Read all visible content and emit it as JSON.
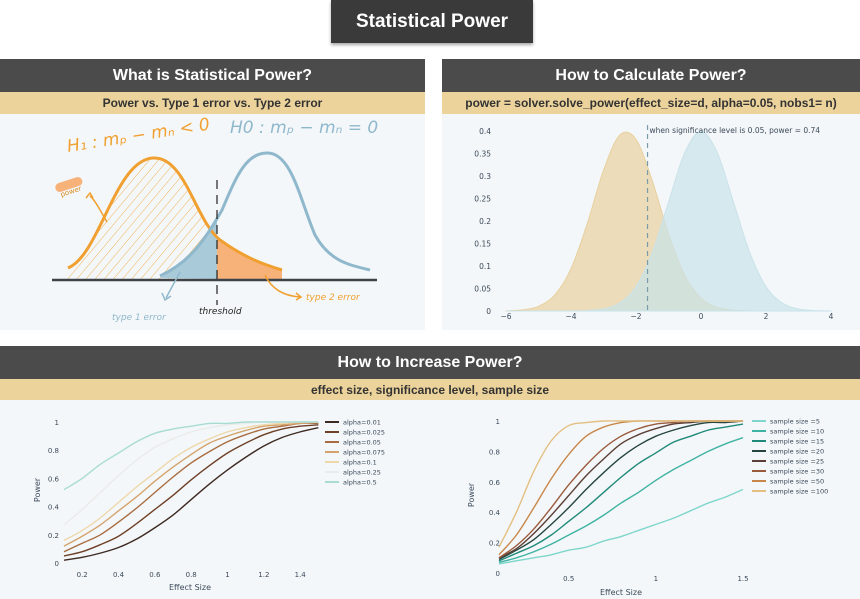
{
  "title": "Statistical Power",
  "panels": {
    "what": {
      "header": "What is Statistical Power?",
      "subheader": "Power vs. Type 1 error vs. Type 2 error",
      "sketch": {
        "h1": "H₁ : mₚ − mₙ < 0",
        "h0": "H0 : mₚ − mₙ = 0",
        "power": "power",
        "type1": "type 1 error",
        "threshold": "threshold",
        "type2": "type 2 error",
        "colors": {
          "h1": "#f0a030",
          "h0": "#8fb8cc",
          "type2_fill": "#f7b27a",
          "type1_fill": "#a9cbd9"
        }
      }
    },
    "calc": {
      "header": "How to Calculate Power?",
      "subheader": "power = solver.solve_power(effect_size=d, alpha=0.05, nobs1= n)"
    },
    "increase": {
      "header": "How to Increase Power?",
      "subheader": "effect size, significance level, sample size"
    }
  },
  "chart_data": [
    {
      "type": "area",
      "annotation": "when significance level is 0.05, power = 0.74",
      "threshold_x": -1.645,
      "xlim": [
        -6.3,
        4
      ],
      "ylim": [
        0,
        0.4
      ],
      "xticks": [
        -6,
        -4,
        -2,
        0,
        2,
        4
      ],
      "yticks": [
        0,
        0.05,
        0.1,
        0.15,
        0.2,
        0.25,
        0.3,
        0.35,
        0.4
      ],
      "grid": false,
      "x": [
        -6,
        -5.5,
        -5,
        -4.5,
        -4,
        -3.5,
        -3,
        -2.5,
        -2,
        -1.5,
        -1,
        -0.5,
        0,
        0.5,
        1,
        1.5,
        2,
        2.5,
        3,
        3.5,
        4
      ],
      "series": [
        {
          "color": "#e8d09e",
          "values": [
            0.0004,
            0.0024,
            0.0104,
            0.0355,
            0.094,
            0.1942,
            0.3123,
            0.391,
            0.3814,
            0.2897,
            0.1714,
            0.079,
            0.0283,
            0.0079,
            0.0017,
            0.0003,
            0,
            0,
            0,
            0,
            0
          ]
        },
        {
          "color": "#c9e3ea",
          "values": [
            0,
            0,
            0,
            0,
            0.0001,
            0.0009,
            0.0044,
            0.018,
            0.054,
            0.13,
            0.242,
            0.352,
            0.399,
            0.352,
            0.242,
            0.13,
            0.054,
            0.018,
            0.0044,
            0.0009,
            0.0001
          ]
        }
      ]
    },
    {
      "type": "line",
      "xlabel": "Effect Size",
      "ylabel": "Power",
      "xlim": [
        0.1,
        1.5
      ],
      "ylim": [
        0,
        1
      ],
      "xticks": [
        0.2,
        0.4,
        0.6,
        0.8,
        1,
        1.2,
        1.4
      ],
      "yticks": [
        0,
        0.2,
        0.4,
        0.6,
        0.8,
        1
      ],
      "legend": "right",
      "x": [
        0.1,
        0.2,
        0.3,
        0.4,
        0.5,
        0.6,
        0.7,
        0.8,
        0.9,
        1.0,
        1.1,
        1.2,
        1.3,
        1.4,
        1.5
      ],
      "series": [
        {
          "name": "alpha=0.01",
          "color": "#3d2a22",
          "values": [
            0.02,
            0.04,
            0.07,
            0.11,
            0.17,
            0.25,
            0.34,
            0.45,
            0.56,
            0.66,
            0.75,
            0.83,
            0.89,
            0.93,
            0.96
          ]
        },
        {
          "name": "alpha=0.025",
          "color": "#6e4028",
          "values": [
            0.05,
            0.08,
            0.13,
            0.19,
            0.28,
            0.38,
            0.48,
            0.59,
            0.69,
            0.78,
            0.85,
            0.91,
            0.95,
            0.97,
            0.98
          ]
        },
        {
          "name": "alpha=0.05",
          "color": "#a86c40",
          "values": [
            0.08,
            0.14,
            0.2,
            0.29,
            0.39,
            0.5,
            0.61,
            0.71,
            0.79,
            0.86,
            0.91,
            0.95,
            0.97,
            0.99,
            0.99
          ]
        },
        {
          "name": "alpha=0.075",
          "color": "#d4a36c",
          "values": [
            0.12,
            0.19,
            0.27,
            0.37,
            0.47,
            0.58,
            0.68,
            0.77,
            0.85,
            0.9,
            0.94,
            0.97,
            0.98,
            0.99,
            1.0
          ]
        },
        {
          "name": "alpha=0.1",
          "color": "#eed7ab",
          "values": [
            0.16,
            0.23,
            0.32,
            0.43,
            0.54,
            0.64,
            0.74,
            0.82,
            0.88,
            0.93,
            0.96,
            0.98,
            0.99,
            1.0,
            1.0
          ]
        },
        {
          "name": "alpha=0.25",
          "color": "#e9ecea",
          "values": [
            0.27,
            0.38,
            0.5,
            0.62,
            0.73,
            0.82,
            0.88,
            0.93,
            0.96,
            0.98,
            0.99,
            1.0,
            1.0,
            1.0,
            1.0
          ]
        },
        {
          "name": "alpha=0.5",
          "color": "#a8dcd3",
          "values": [
            0.52,
            0.6,
            0.7,
            0.78,
            0.86,
            0.92,
            0.95,
            0.97,
            0.99,
            0.99,
            1.0,
            1.0,
            1.0,
            1.0,
            1.0
          ]
        }
      ]
    },
    {
      "type": "line",
      "xlabel": "Effect Size",
      "ylabel": "Power",
      "xlim": [
        0.1,
        1.5
      ],
      "ylim": [
        0,
        1
      ],
      "xticks": [
        0.5,
        1,
        1.5
      ],
      "yticks": [
        0,
        0.2,
        0.4,
        0.6,
        0.8,
        1
      ],
      "legend": "right",
      "x": [
        0.1,
        0.2,
        0.3,
        0.4,
        0.5,
        0.6,
        0.7,
        0.8,
        0.9,
        1.0,
        1.1,
        1.2,
        1.3,
        1.4,
        1.5
      ],
      "series": [
        {
          "name": "sample size =5",
          "color": "#7fd6cc",
          "values": [
            0.06,
            0.08,
            0.1,
            0.12,
            0.15,
            0.17,
            0.21,
            0.24,
            0.28,
            0.32,
            0.36,
            0.41,
            0.46,
            0.5,
            0.55
          ]
        },
        {
          "name": "sample size =10",
          "color": "#3fb3a3",
          "values": [
            0.07,
            0.1,
            0.14,
            0.19,
            0.25,
            0.31,
            0.38,
            0.46,
            0.53,
            0.61,
            0.68,
            0.74,
            0.8,
            0.85,
            0.89
          ]
        },
        {
          "name": "sample size =15",
          "color": "#1f8a7a",
          "values": [
            0.08,
            0.13,
            0.18,
            0.25,
            0.34,
            0.43,
            0.53,
            0.63,
            0.72,
            0.79,
            0.86,
            0.9,
            0.94,
            0.96,
            0.98
          ]
        },
        {
          "name": "sample size =20",
          "color": "#27463f",
          "values": [
            0.09,
            0.15,
            0.22,
            0.32,
            0.43,
            0.55,
            0.66,
            0.76,
            0.84,
            0.9,
            0.94,
            0.97,
            0.99,
            0.99,
            1.0
          ]
        },
        {
          "name": "sample size =25",
          "color": "#5b3f36",
          "values": [
            0.1,
            0.16,
            0.26,
            0.38,
            0.51,
            0.64,
            0.75,
            0.85,
            0.91,
            0.95,
            0.98,
            0.99,
            1.0,
            1.0,
            1.0
          ]
        },
        {
          "name": "sample size =30",
          "color": "#9a5a3c",
          "values": [
            0.1,
            0.18,
            0.29,
            0.43,
            0.58,
            0.71,
            0.82,
            0.9,
            0.95,
            0.98,
            0.99,
            1.0,
            1.0,
            1.0,
            1.0
          ]
        },
        {
          "name": "sample size =50",
          "color": "#c8874a",
          "values": [
            0.12,
            0.25,
            0.43,
            0.62,
            0.78,
            0.9,
            0.96,
            0.99,
            1.0,
            1.0,
            1.0,
            1.0,
            1.0,
            1.0,
            1.0
          ]
        },
        {
          "name": "sample size =100",
          "color": "#e3bf82",
          "values": [
            0.17,
            0.4,
            0.67,
            0.87,
            0.97,
            0.99,
            1.0,
            1.0,
            1.0,
            1.0,
            1.0,
            1.0,
            1.0,
            1.0,
            1.0
          ]
        }
      ]
    }
  ]
}
